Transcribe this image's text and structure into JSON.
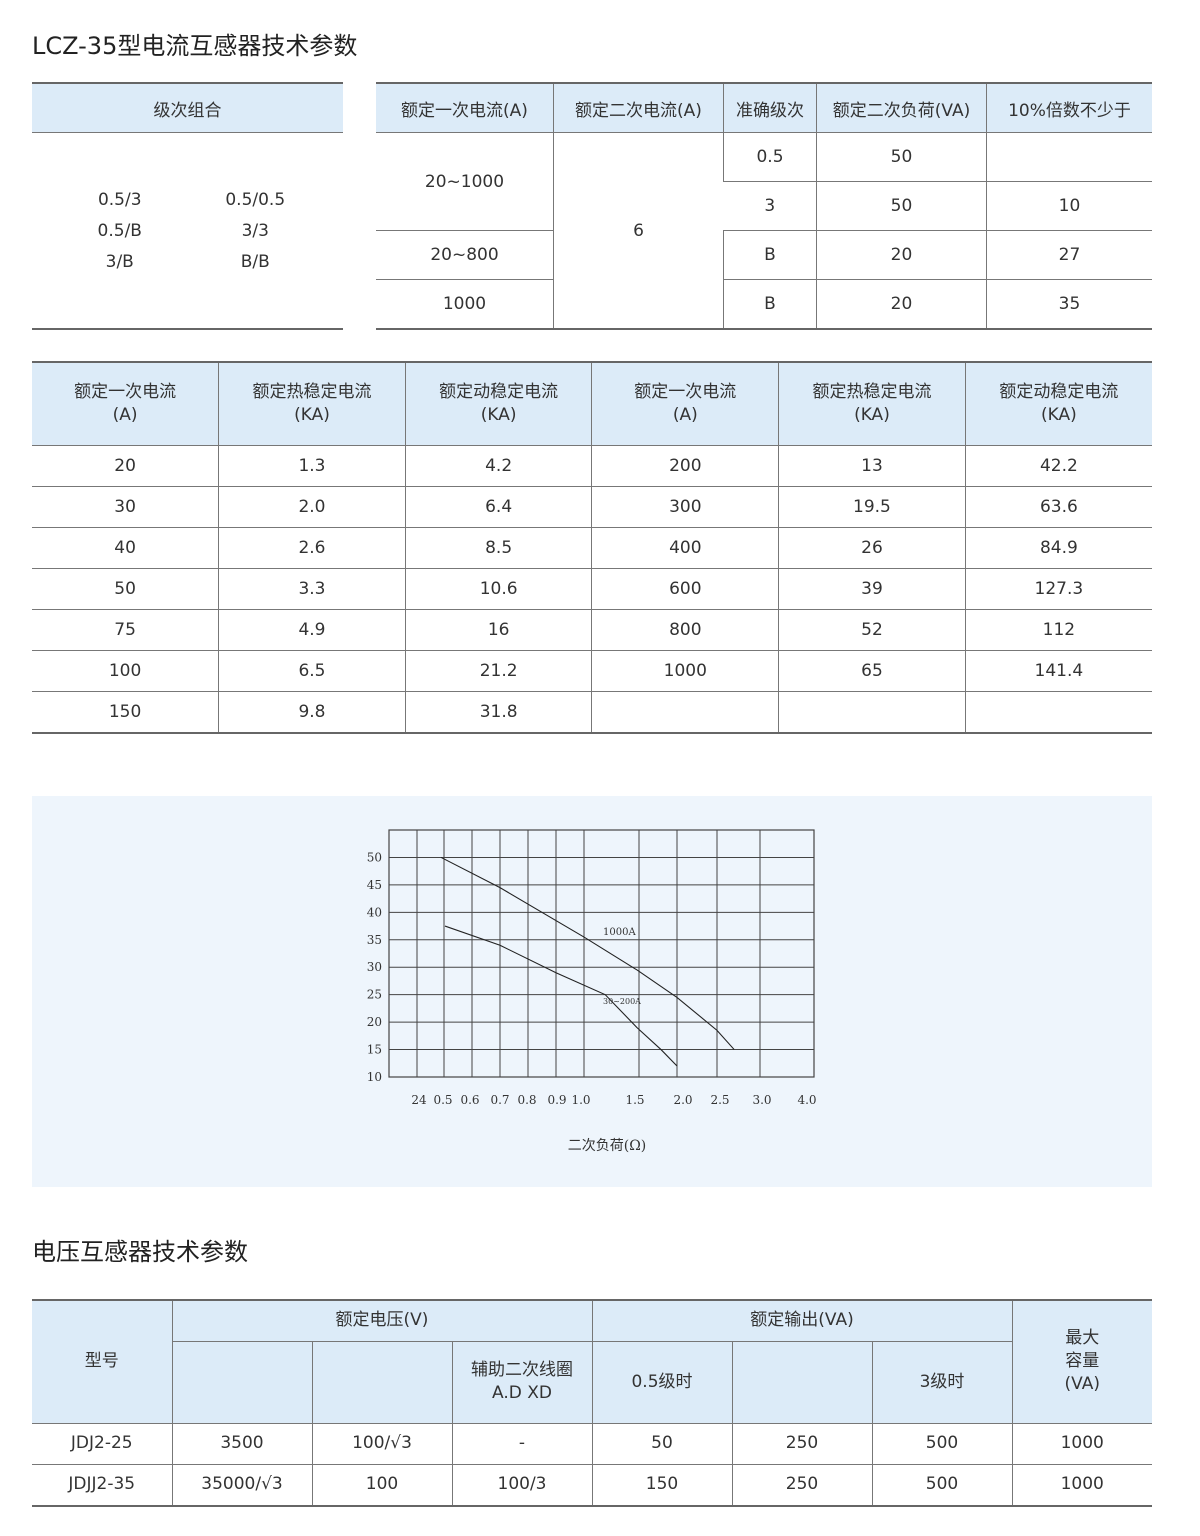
{
  "section1": {
    "title": "LCZ-35型电流互感器技术参数"
  },
  "combo_table": {
    "header": "级次组合",
    "rows": [
      [
        "0.5/3",
        "0.5/0.5"
      ],
      [
        "0.5/B",
        "3/3"
      ],
      [
        "3/B",
        "B/B"
      ]
    ]
  },
  "accuracy_table": {
    "headers": [
      "额定一次电流(A)",
      "额定二次电流(A)",
      "准确级次",
      "额定二次负荷(VA)",
      "10%倍数不少于"
    ],
    "primary": [
      "20~1000",
      "20~800",
      "1000"
    ],
    "secondary": "6",
    "classes": [
      "0.5",
      "3",
      "B",
      "B"
    ],
    "loads": [
      "50",
      "50",
      "20",
      "20"
    ],
    "multiples": [
      "",
      "10",
      "27",
      "35"
    ]
  },
  "stability_table": {
    "headers": [
      [
        "额定一次电流",
        "(A)"
      ],
      [
        "额定热稳定电流",
        "(KA)"
      ],
      [
        "额定动稳定电流",
        "(KA)"
      ],
      [
        "额定一次电流",
        "(A)"
      ],
      [
        "额定热稳定电流",
        "(KA)"
      ],
      [
        "额定动稳定电流",
        "(KA)"
      ]
    ],
    "rows": [
      [
        "20",
        "1.3",
        "4.2",
        "200",
        "13",
        "42.2"
      ],
      [
        "30",
        "2.0",
        "6.4",
        "300",
        "19.5",
        "63.6"
      ],
      [
        "40",
        "2.6",
        "8.5",
        "400",
        "26",
        "84.9"
      ],
      [
        "50",
        "3.3",
        "10.6",
        "600",
        "39",
        "127.3"
      ],
      [
        "75",
        "4.9",
        "16",
        "800",
        "52",
        "112"
      ],
      [
        "100",
        "6.5",
        "21.2",
        "1000",
        "65",
        "141.4"
      ],
      [
        "150",
        "9.8",
        "31.8",
        "",
        "",
        ""
      ]
    ]
  },
  "chart_data": {
    "type": "line",
    "xlabel": "二次负荷(Ω)",
    "ylabel": "",
    "x_tick_labels": [
      "24",
      "0.5",
      "0.6",
      "0.7",
      "0.8",
      "0.9",
      "1.0",
      "1.5",
      "2.0",
      "2.5",
      "3.0",
      "4.0"
    ],
    "y_ticks": [
      50,
      45,
      40,
      35,
      30,
      25,
      20,
      15,
      10
    ],
    "ylim": [
      10,
      55
    ],
    "grid": true,
    "series": [
      {
        "name": "1000A",
        "x": [
          0.47,
          0.7,
          1.0,
          1.5,
          2.0,
          2.5,
          2.7
        ],
        "y": [
          50,
          44.5,
          35.5,
          29.5,
          24.5,
          18.5,
          15
        ]
      },
      {
        "name": "30~200A",
        "x": [
          0.5,
          0.7,
          0.9,
          1.2,
          1.5,
          1.8,
          2.0
        ],
        "y": [
          37.5,
          34,
          29,
          25,
          19,
          15,
          12
        ]
      }
    ]
  },
  "section2": {
    "title": "电压互感器技术参数"
  },
  "voltage_table": {
    "h_model": "型号",
    "h_voltage": "额定电压(V)",
    "h_output": "额定输出(VA)",
    "h_max": [
      "最大",
      "容量",
      "(VA)"
    ],
    "h_aux": [
      "辅助二次线圈",
      "A.D XD"
    ],
    "h_05": "0.5级时",
    "h_3": "3级时",
    "rows": [
      [
        "JDJ2-25",
        "3500",
        "100/√3",
        "-",
        "50",
        "250",
        "500",
        "1000"
      ],
      [
        "JDJJ2-35",
        "35000/√3",
        "100",
        "100/3",
        "150",
        "250",
        "500",
        "1000"
      ]
    ]
  },
  "colors": {
    "header_bg": "#dcebf8",
    "chart_bg": "#eef5fc"
  }
}
